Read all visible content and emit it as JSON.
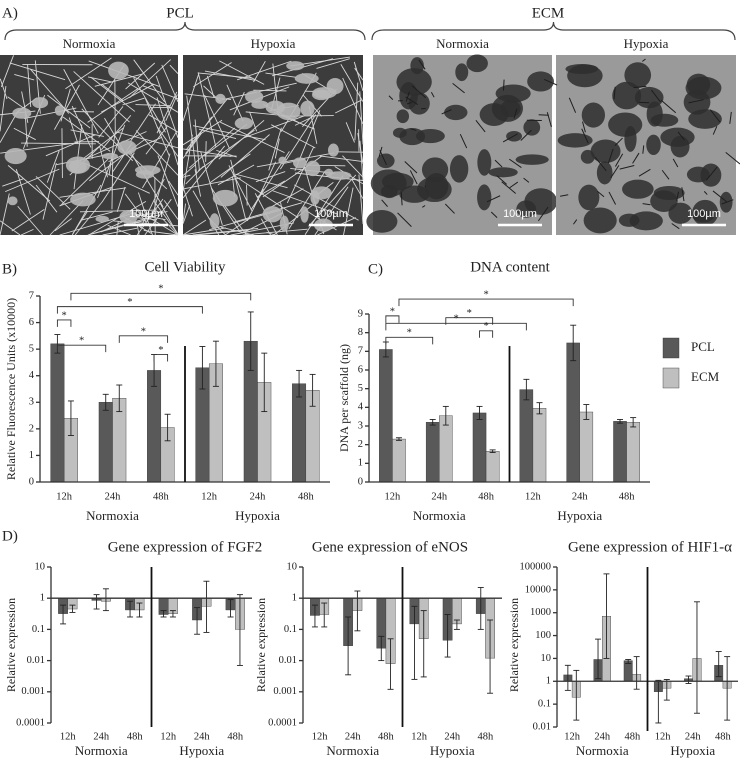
{
  "panel_a": {
    "label": "A)",
    "groups": [
      {
        "title": "PCL",
        "conditions": [
          "Normoxia",
          "Hypoxia"
        ]
      },
      {
        "title": "ECM",
        "conditions": [
          "Normoxia",
          "Hypoxia"
        ]
      }
    ],
    "scale_bar": "100µm"
  },
  "chart_data": [
    {
      "type": "bar",
      "panel_label": "B)",
      "title": "Cell Viability",
      "y_label": "Relative Fluorescence Units (x10000)",
      "categories": [
        "12h",
        "24h",
        "48h",
        "12h",
        "24h",
        "48h"
      ],
      "groups": [
        "Normoxia",
        "Hypoxia"
      ],
      "series": [
        {
          "name": "PCL",
          "color": "#595959",
          "values": [
            5.2,
            3.0,
            4.2,
            4.3,
            5.3,
            3.7
          ],
          "errors": [
            0.35,
            0.3,
            0.6,
            0.8,
            1.1,
            0.5
          ]
        },
        {
          "name": "ECM",
          "color": "#bfbfbf",
          "values": [
            2.4,
            3.15,
            2.05,
            4.45,
            3.75,
            3.45
          ],
          "errors": [
            0.65,
            0.5,
            0.5,
            0.85,
            1.1,
            0.6
          ]
        }
      ],
      "ylim": [
        0,
        7
      ],
      "yticks": [
        0,
        1,
        2,
        3,
        4,
        5,
        6,
        7
      ],
      "log": false,
      "legend": false,
      "annotations": [
        "*",
        "*",
        "*",
        "*",
        "*",
        "*"
      ]
    },
    {
      "type": "bar",
      "panel_label": "C)",
      "title": "DNA content",
      "y_label": "DNA per scaffold (ng)",
      "categories": [
        "12h",
        "24h",
        "48h",
        "12h",
        "24h",
        "48h"
      ],
      "groups": [
        "Normoxia",
        "Hypoxia"
      ],
      "series": [
        {
          "name": "PCL",
          "color": "#595959",
          "values": [
            7.1,
            3.2,
            3.7,
            4.95,
            7.45,
            3.25
          ],
          "errors": [
            0.4,
            0.15,
            0.35,
            0.55,
            0.95,
            0.1
          ]
        },
        {
          "name": "ECM",
          "color": "#bfbfbf",
          "values": [
            2.3,
            3.55,
            1.65,
            3.95,
            3.75,
            3.2
          ],
          "errors": [
            0.07,
            0.5,
            0.07,
            0.3,
            0.4,
            0.25
          ]
        }
      ],
      "ylim": [
        0,
        9
      ],
      "yticks": [
        0,
        1,
        2,
        3,
        4,
        5,
        6,
        7,
        8,
        9
      ],
      "log": false,
      "legend": true,
      "annotations": [
        "*",
        "*",
        "*",
        "*",
        "*",
        "*"
      ]
    },
    {
      "type": "bar",
      "panel_label": "D)",
      "title": "Gene expression of FGF2",
      "y_label": "Relative expression",
      "categories": [
        "12h",
        "24h",
        "48h",
        "12h",
        "24h",
        "48h"
      ],
      "groups": [
        "Normoxia",
        "Hypoxia"
      ],
      "series": [
        {
          "name": "PCL",
          "color": "#595959",
          "values": [
            0.32,
            0.85,
            0.42,
            0.3,
            0.2,
            0.42
          ],
          "lower": [
            0.15,
            0.45,
            0.25,
            0.25,
            0.07,
            0.25
          ],
          "upper": [
            0.6,
            1.3,
            0.8,
            0.4,
            0.5,
            0.9
          ]
        },
        {
          "name": "ECM",
          "color": "#bfbfbf",
          "values": [
            0.45,
            0.8,
            0.42,
            0.32,
            0.55,
            0.1
          ],
          "lower": [
            0.35,
            0.4,
            0.25,
            0.25,
            0.08,
            0.007
          ],
          "upper": [
            0.6,
            2,
            0.7,
            0.4,
            3.5,
            1.3
          ]
        }
      ],
      "ylim": [
        0.0001,
        10
      ],
      "yticks": [
        0.0001,
        0.001,
        0.01,
        0.1,
        1,
        10
      ],
      "log": true,
      "x_axis_at": 1,
      "legend": false
    },
    {
      "type": "bar",
      "title": "Gene expression of eNOS",
      "y_label": "Relative expression",
      "categories": [
        "12h",
        "24h",
        "48h",
        "12h",
        "24h",
        "48h"
      ],
      "groups": [
        "Normoxia",
        "Hypoxia"
      ],
      "series": [
        {
          "name": "PCL",
          "color": "#595959",
          "values": [
            0.28,
            0.03,
            0.025,
            0.15,
            0.045,
            0.32
          ],
          "lower": [
            0.12,
            0.0035,
            0.01,
            0.0025,
            0.013,
            0.1
          ],
          "upper": [
            0.6,
            0.25,
            0.06,
            0.55,
            0.3,
            2.2
          ]
        },
        {
          "name": "ECM",
          "color": "#bfbfbf",
          "values": [
            0.3,
            0.4,
            0.008,
            0.05,
            0.15,
            0.012
          ],
          "lower": [
            0.12,
            0.09,
            0.0012,
            0.003,
            0.1,
            0.0009
          ],
          "upper": [
            0.7,
            1.7,
            0.05,
            0.4,
            0.2,
            0.2
          ]
        }
      ],
      "ylim": [
        0.0001,
        10
      ],
      "yticks": [
        0.0001,
        0.001,
        0.01,
        0.1,
        1,
        10
      ],
      "log": true,
      "x_axis_at": 1,
      "legend": false
    },
    {
      "type": "bar",
      "title": "Gene expression of HIF1-α",
      "y_label": "Relative expression",
      "categories": [
        "12h",
        "24h",
        "48h",
        "12h",
        "24h",
        "48h"
      ],
      "groups": [
        "Normoxia",
        "Hypoxia"
      ],
      "series": [
        {
          "name": "PCL",
          "color": "#595959",
          "values": [
            1.9,
            9,
            8,
            0.35,
            1.3,
            5
          ],
          "lower": [
            0.4,
            1.3,
            6,
            0.015,
            0.8,
            1.6
          ],
          "upper": [
            5,
            70,
            9,
            1.1,
            1.7,
            20
          ]
        },
        {
          "name": "ECM",
          "color": "#bfbfbf",
          "values": [
            0.2,
            700,
            2,
            0.5,
            10,
            0.5
          ],
          "lower": [
            0.02,
            10,
            0.45,
            0.15,
            0.04,
            0.02
          ],
          "upper": [
            3,
            50000,
            12,
            1.2,
            3000,
            12
          ]
        }
      ],
      "ylim": [
        0.01,
        100000
      ],
      "yticks": [
        0.01,
        0.1,
        1,
        10,
        100,
        1000,
        10000,
        100000
      ],
      "log": true,
      "x_axis_at": 1,
      "legend": false
    }
  ]
}
